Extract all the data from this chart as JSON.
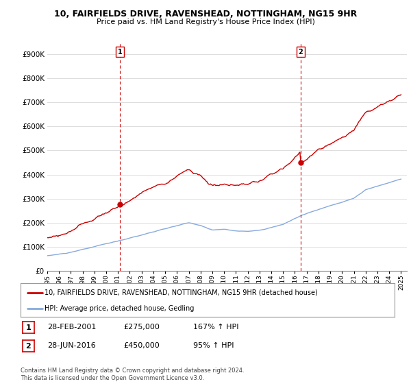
{
  "title_line1": "10, FAIRFIELDS DRIVE, RAVENSHEAD, NOTTINGHAM, NG15 9HR",
  "title_line2": "Price paid vs. HM Land Registry's House Price Index (HPI)",
  "ylim": [
    0,
    950000
  ],
  "yticks": [
    0,
    100000,
    200000,
    300000,
    400000,
    500000,
    600000,
    700000,
    800000,
    900000
  ],
  "ytick_labels": [
    "£0",
    "£100K",
    "£200K",
    "£300K",
    "£400K",
    "£500K",
    "£600K",
    "£700K",
    "£800K",
    "£900K"
  ],
  "xlim_start": 1995,
  "xlim_end": 2025.5,
  "sale1_date_num": 2001.16,
  "sale1_price": 275000,
  "sale1_label": "1",
  "sale2_date_num": 2016.49,
  "sale2_price": 450000,
  "sale2_label": "2",
  "red_line_color": "#cc0000",
  "blue_line_color": "#88aadd",
  "vline_color": "#cc0000",
  "background_color": "#ffffff",
  "grid_color": "#dddddd",
  "legend_label_red": "10, FAIRFIELDS DRIVE, RAVENSHEAD, NOTTINGHAM, NG15 9HR (detached house)",
  "legend_label_blue": "HPI: Average price, detached house, Gedling",
  "footer_text": "Contains HM Land Registry data © Crown copyright and database right 2024.\nThis data is licensed under the Open Government Licence v3.0.",
  "table_rows": [
    {
      "num": "1",
      "date": "28-FEB-2001",
      "price": "£275,000",
      "hpi": "167% ↑ HPI"
    },
    {
      "num": "2",
      "date": "28-JUN-2016",
      "price": "£450,000",
      "hpi": "95% ↑ HPI"
    }
  ]
}
